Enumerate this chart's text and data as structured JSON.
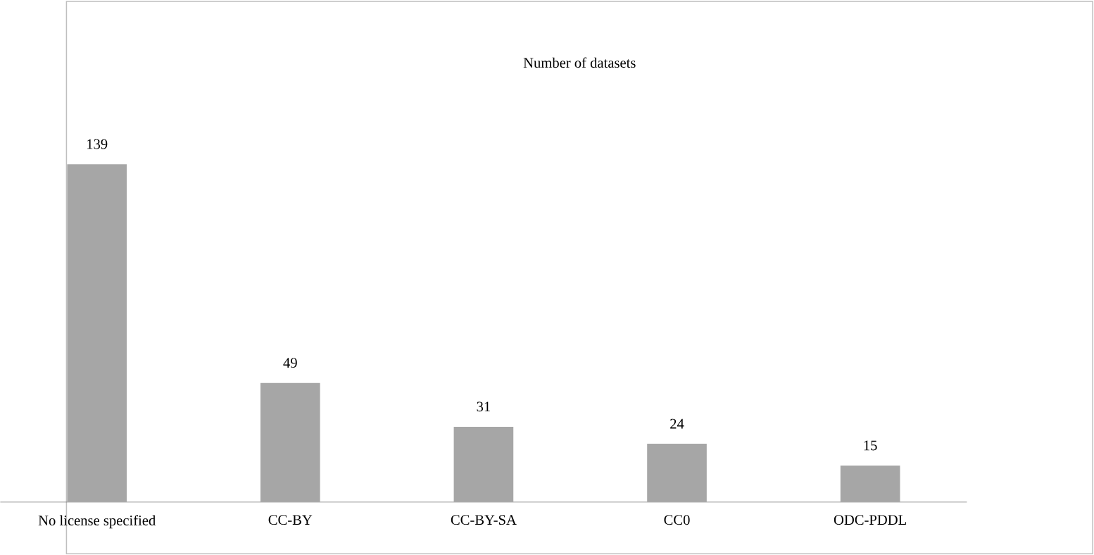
{
  "chart_data": {
    "type": "bar",
    "title": "Number of datasets",
    "categories": [
      "No license specified",
      "CC-BY",
      "CC-BY-SA",
      "CC0",
      "ODC-PDDL"
    ],
    "values": [
      139,
      49,
      31,
      24,
      15
    ],
    "color": "#a6a6a6",
    "data_labels": true
  }
}
